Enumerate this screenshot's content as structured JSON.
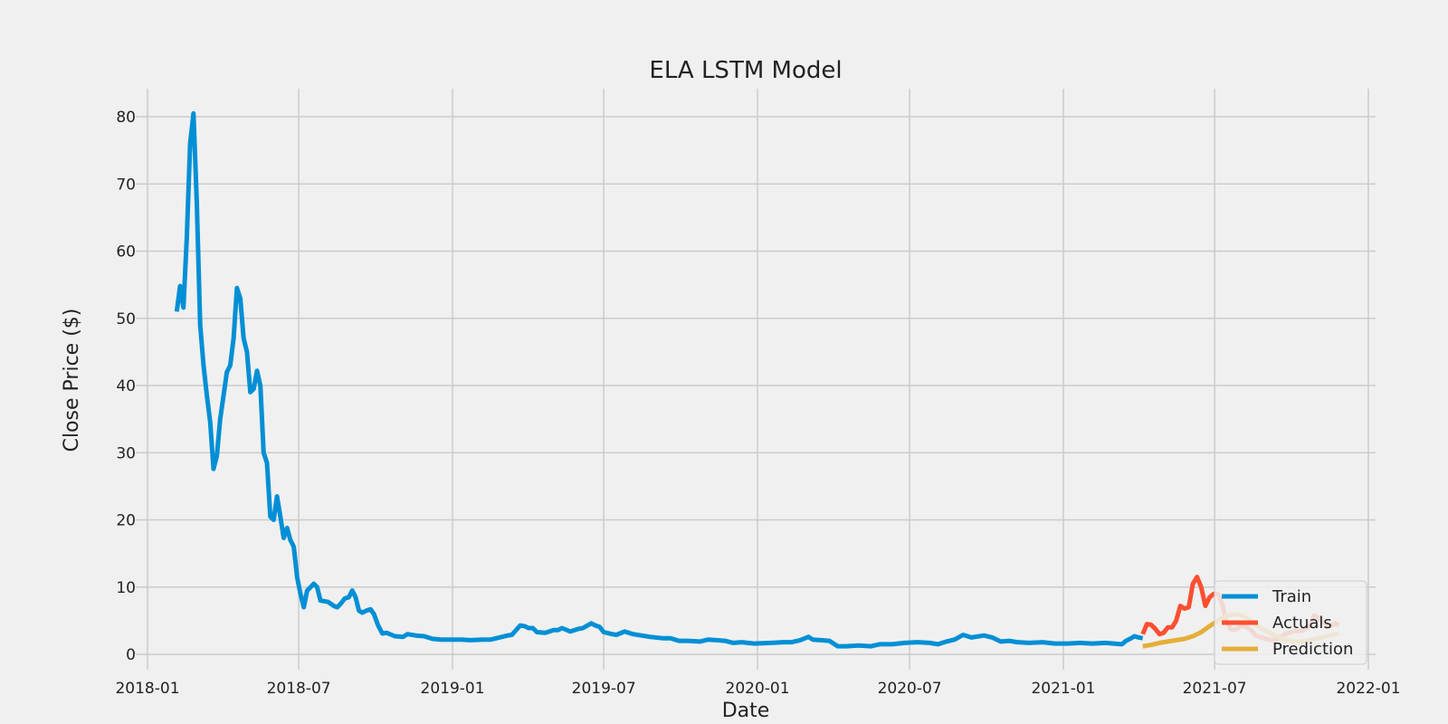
{
  "chart_data": {
    "type": "line",
    "title": "ELA LSTM Model",
    "xlabel": "Date",
    "ylabel": "Close Price ($)",
    "x_is_date": true,
    "xlim": [
      "2018-01-01",
      "2022-01-01"
    ],
    "ylim": [
      -1,
      84
    ],
    "x_ticks": [
      "2018-01",
      "2018-07",
      "2019-01",
      "2019-07",
      "2020-01",
      "2020-07",
      "2021-01",
      "2021-07",
      "2022-01"
    ],
    "y_ticks": [
      0,
      10,
      20,
      30,
      40,
      50,
      60,
      70,
      80
    ],
    "grid": true,
    "legend_position": "lower-right",
    "series": [
      {
        "name": "Train",
        "color": "#008fd5",
        "points": [
          [
            "2018-02-05",
            51
          ],
          [
            "2018-02-09",
            54.8
          ],
          [
            "2018-02-13",
            51.6
          ],
          [
            "2018-02-17",
            62
          ],
          [
            "2018-02-21",
            76
          ],
          [
            "2018-02-25",
            80.5
          ],
          [
            "2018-03-01",
            67
          ],
          [
            "2018-03-05",
            49
          ],
          [
            "2018-03-09",
            43
          ],
          [
            "2018-03-13",
            38.5
          ],
          [
            "2018-03-17",
            34.5
          ],
          [
            "2018-03-21",
            27.6
          ],
          [
            "2018-03-25",
            29.5
          ],
          [
            "2018-03-29",
            35
          ],
          [
            "2018-04-02",
            38.5
          ],
          [
            "2018-04-06",
            42
          ],
          [
            "2018-04-10",
            43
          ],
          [
            "2018-04-14",
            47
          ],
          [
            "2018-04-18",
            54.5
          ],
          [
            "2018-04-22",
            53
          ],
          [
            "2018-04-26",
            47
          ],
          [
            "2018-04-30",
            45
          ],
          [
            "2018-05-04",
            39
          ],
          [
            "2018-05-08",
            39.5
          ],
          [
            "2018-05-12",
            42.2
          ],
          [
            "2018-05-16",
            40
          ],
          [
            "2018-05-20",
            30
          ],
          [
            "2018-05-24",
            28.5
          ],
          [
            "2018-05-28",
            20.5
          ],
          [
            "2018-06-01",
            20
          ],
          [
            "2018-06-05",
            23.5
          ],
          [
            "2018-06-09",
            20.5
          ],
          [
            "2018-06-13",
            17.3
          ],
          [
            "2018-06-17",
            18.8
          ],
          [
            "2018-06-21",
            17
          ],
          [
            "2018-06-25",
            16
          ],
          [
            "2018-06-29",
            11.5
          ],
          [
            "2018-07-03",
            9
          ],
          [
            "2018-07-07",
            7
          ],
          [
            "2018-07-11",
            9.5
          ],
          [
            "2018-07-15",
            10
          ],
          [
            "2018-07-19",
            10.5
          ],
          [
            "2018-07-23",
            10
          ],
          [
            "2018-07-27",
            8
          ],
          [
            "2018-08-05",
            7.8
          ],
          [
            "2018-08-12",
            7.2
          ],
          [
            "2018-08-16",
            7
          ],
          [
            "2018-08-20",
            7.5
          ],
          [
            "2018-08-25",
            8.3
          ],
          [
            "2018-08-30",
            8.5
          ],
          [
            "2018-09-03",
            9.5
          ],
          [
            "2018-09-07",
            8.5
          ],
          [
            "2018-09-11",
            6.5
          ],
          [
            "2018-09-15",
            6.2
          ],
          [
            "2018-09-20",
            6.5
          ],
          [
            "2018-09-25",
            6.7
          ],
          [
            "2018-09-29",
            6
          ],
          [
            "2018-10-04",
            4.3
          ],
          [
            "2018-10-09",
            3.1
          ],
          [
            "2018-10-14",
            3.2
          ],
          [
            "2018-10-24",
            2.7
          ],
          [
            "2018-11-03",
            2.6
          ],
          [
            "2018-11-08",
            3
          ],
          [
            "2018-11-18",
            2.8
          ],
          [
            "2018-11-28",
            2.7
          ],
          [
            "2018-12-08",
            2.3
          ],
          [
            "2018-12-18",
            2.2
          ],
          [
            "2018-12-28",
            2.2
          ],
          [
            "2019-01-12",
            2.2
          ],
          [
            "2019-01-22",
            2.1
          ],
          [
            "2019-02-06",
            2.2
          ],
          [
            "2019-02-16",
            2.2
          ],
          [
            "2019-02-26",
            2.5
          ],
          [
            "2019-03-08",
            2.8
          ],
          [
            "2019-03-13",
            2.9
          ],
          [
            "2019-03-23",
            4.3
          ],
          [
            "2019-03-28",
            4.2
          ],
          [
            "2019-04-02",
            3.9
          ],
          [
            "2019-04-07",
            3.9
          ],
          [
            "2019-04-12",
            3.3
          ],
          [
            "2019-04-22",
            3.2
          ],
          [
            "2019-05-02",
            3.6
          ],
          [
            "2019-05-07",
            3.6
          ],
          [
            "2019-05-12",
            3.9
          ],
          [
            "2019-05-22",
            3.4
          ],
          [
            "2019-06-01",
            3.8
          ],
          [
            "2019-06-06",
            3.9
          ],
          [
            "2019-06-16",
            4.6
          ],
          [
            "2019-06-21",
            4.3
          ],
          [
            "2019-06-26",
            4.1
          ],
          [
            "2019-07-01",
            3.3
          ],
          [
            "2019-07-11",
            3
          ],
          [
            "2019-07-16",
            2.9
          ],
          [
            "2019-07-26",
            3.4
          ],
          [
            "2019-08-05",
            3
          ],
          [
            "2019-08-15",
            2.8
          ],
          [
            "2019-08-25",
            2.6
          ],
          [
            "2019-09-09",
            2.4
          ],
          [
            "2019-09-19",
            2.4
          ],
          [
            "2019-09-29",
            2
          ],
          [
            "2019-10-09",
            2
          ],
          [
            "2019-10-24",
            1.9
          ],
          [
            "2019-11-03",
            2.2
          ],
          [
            "2019-11-13",
            2.1
          ],
          [
            "2019-11-23",
            2
          ],
          [
            "2019-12-03",
            1.7
          ],
          [
            "2019-12-13",
            1.8
          ],
          [
            "2019-12-28",
            1.6
          ],
          [
            "2020-01-17",
            1.7
          ],
          [
            "2020-02-01",
            1.8
          ],
          [
            "2020-02-11",
            1.8
          ],
          [
            "2020-02-21",
            2.1
          ],
          [
            "2020-03-02",
            2.6
          ],
          [
            "2020-03-07",
            2.2
          ],
          [
            "2020-03-17",
            2.1
          ],
          [
            "2020-03-27",
            2
          ],
          [
            "2020-04-06",
            1.2
          ],
          [
            "2020-04-16",
            1.2
          ],
          [
            "2020-05-01",
            1.3
          ],
          [
            "2020-05-16",
            1.2
          ],
          [
            "2020-05-26",
            1.5
          ],
          [
            "2020-06-10",
            1.5
          ],
          [
            "2020-06-25",
            1.7
          ],
          [
            "2020-07-10",
            1.8
          ],
          [
            "2020-07-25",
            1.7
          ],
          [
            "2020-08-04",
            1.5
          ],
          [
            "2020-08-14",
            1.9
          ],
          [
            "2020-08-24",
            2.2
          ],
          [
            "2020-09-03",
            2.9
          ],
          [
            "2020-09-13",
            2.5
          ],
          [
            "2020-09-28",
            2.8
          ],
          [
            "2020-10-08",
            2.5
          ],
          [
            "2020-10-18",
            1.9
          ],
          [
            "2020-10-28",
            2
          ],
          [
            "2020-11-07",
            1.8
          ],
          [
            "2020-11-22",
            1.7
          ],
          [
            "2020-12-07",
            1.8
          ],
          [
            "2020-12-22",
            1.6
          ],
          [
            "2021-01-06",
            1.6
          ],
          [
            "2021-01-21",
            1.7
          ],
          [
            "2021-02-05",
            1.6
          ],
          [
            "2021-02-20",
            1.7
          ],
          [
            "2021-03-02",
            1.6
          ],
          [
            "2021-03-12",
            1.5
          ],
          [
            "2021-03-17",
            2
          ],
          [
            "2021-03-22",
            2.3
          ],
          [
            "2021-03-27",
            2.7
          ],
          [
            "2021-04-01",
            2.5
          ],
          [
            "2021-04-06",
            2.4
          ]
        ]
      },
      {
        "name": "Actuals",
        "color": "#fc4f30",
        "points": [
          [
            "2021-04-06",
            3
          ],
          [
            "2021-04-11",
            4.5
          ],
          [
            "2021-04-16",
            4.4
          ],
          [
            "2021-04-21",
            3.8
          ],
          [
            "2021-04-26",
            3
          ],
          [
            "2021-05-01",
            3.2
          ],
          [
            "2021-05-06",
            4
          ],
          [
            "2021-05-11",
            4
          ],
          [
            "2021-05-16",
            5
          ],
          [
            "2021-05-21",
            7.2
          ],
          [
            "2021-05-26",
            6.8
          ],
          [
            "2021-05-31",
            7
          ],
          [
            "2021-06-05",
            10.5
          ],
          [
            "2021-06-10",
            11.5
          ],
          [
            "2021-06-15",
            10
          ],
          [
            "2021-06-20",
            7.2
          ],
          [
            "2021-06-25",
            8.5
          ],
          [
            "2021-06-30",
            9
          ],
          [
            "2021-07-05",
            9
          ],
          [
            "2021-07-10",
            7.5
          ],
          [
            "2021-07-15",
            5
          ],
          [
            "2021-07-20",
            3.8
          ],
          [
            "2021-07-25",
            3.6
          ],
          [
            "2021-07-30",
            4
          ],
          [
            "2021-08-04",
            4.2
          ],
          [
            "2021-08-09",
            4
          ],
          [
            "2021-08-14",
            3.6
          ],
          [
            "2021-08-19",
            2.8
          ],
          [
            "2021-08-24",
            2.6
          ],
          [
            "2021-08-29",
            2.4
          ],
          [
            "2021-09-03",
            2.2
          ],
          [
            "2021-09-08",
            2.1
          ],
          [
            "2021-09-13",
            2.2
          ],
          [
            "2021-09-18",
            2.6
          ],
          [
            "2021-09-23",
            3
          ],
          [
            "2021-09-28",
            3.2
          ],
          [
            "2021-10-03",
            3.4
          ],
          [
            "2021-10-08",
            3.5
          ],
          [
            "2021-10-13",
            3.5
          ],
          [
            "2021-10-18",
            3.8
          ],
          [
            "2021-10-23",
            4.2
          ],
          [
            "2021-10-28",
            5.8
          ],
          [
            "2021-11-02",
            5.5
          ],
          [
            "2021-11-07",
            4.8
          ],
          [
            "2021-11-12",
            4.5
          ],
          [
            "2021-11-17",
            4.2
          ],
          [
            "2021-11-22",
            4.6
          ],
          [
            "2021-11-27",
            4.3
          ]
        ]
      },
      {
        "name": "Prediction",
        "color": "#e5ae38",
        "points": [
          [
            "2021-04-06",
            1.2
          ],
          [
            "2021-04-16",
            1.4
          ],
          [
            "2021-04-26",
            1.7
          ],
          [
            "2021-05-06",
            1.9
          ],
          [
            "2021-05-16",
            2.1
          ],
          [
            "2021-05-26",
            2.3
          ],
          [
            "2021-06-05",
            2.7
          ],
          [
            "2021-06-15",
            3.3
          ],
          [
            "2021-06-25",
            4.2
          ],
          [
            "2021-07-05",
            5
          ],
          [
            "2021-07-15",
            5.7
          ],
          [
            "2021-07-25",
            6
          ],
          [
            "2021-08-04",
            5.7
          ],
          [
            "2021-08-14",
            4.9
          ],
          [
            "2021-08-24",
            4
          ],
          [
            "2021-09-03",
            3.3
          ],
          [
            "2021-09-13",
            2.7
          ],
          [
            "2021-09-23",
            2.2
          ],
          [
            "2021-10-03",
            1.9
          ],
          [
            "2021-10-13",
            1.9
          ],
          [
            "2021-10-23",
            2.1
          ],
          [
            "2021-11-02",
            2.4
          ],
          [
            "2021-11-12",
            2.7
          ],
          [
            "2021-11-22",
            3
          ],
          [
            "2021-11-27",
            3.1
          ]
        ]
      }
    ]
  }
}
